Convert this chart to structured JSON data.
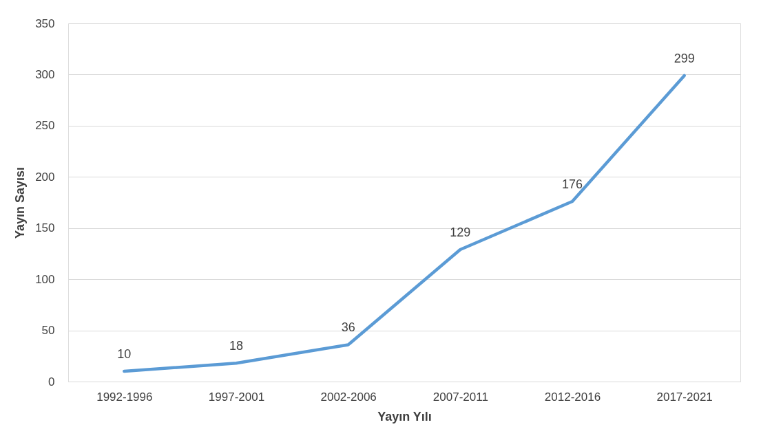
{
  "chart_data": {
    "type": "line",
    "xlabel": "Yayın Yılı",
    "ylabel": "Yayın Sayısı",
    "categories": [
      "1992-1996",
      "1997-2001",
      "2002-2006",
      "2007-2011",
      "2012-2016",
      "2017-2021"
    ],
    "series": [
      {
        "color": "#5b9bd5",
        "values": [
          10,
          18,
          36,
          129,
          176,
          299
        ]
      }
    ],
    "ylim": [
      0,
      350
    ],
    "yticks": [
      0,
      50,
      100,
      150,
      200,
      250,
      300,
      350
    ],
    "grid": "y",
    "data_labels": true,
    "marker": "none",
    "line_style": "solid"
  }
}
